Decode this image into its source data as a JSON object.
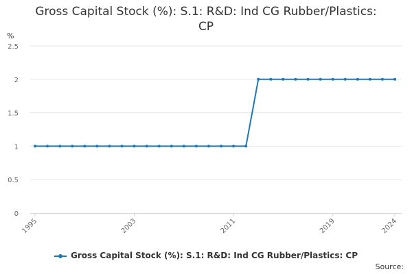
{
  "title_lines": [
    "Gross Capital Stock (%): S.1: R&D: Ind CG Rubber/Plastics:",
    "CP"
  ],
  "y_unit": "%",
  "source_label": "Source:",
  "colors": {
    "series": "#1f77b4",
    "grid": "#e6e6e6",
    "axis": "#ccd6eb"
  },
  "chart_data": {
    "type": "line",
    "title": "Gross Capital Stock (%): S.1: R&D: Ind CG Rubber/Plastics: CP",
    "xlabel": "",
    "ylabel": "%",
    "ylim": [
      0,
      2.5
    ],
    "yticks": [
      0,
      0.5,
      1,
      1.5,
      2,
      2.5
    ],
    "xlim": [
      1995,
      2024
    ],
    "xticks": [
      1995,
      2003,
      2011,
      2019,
      2024
    ],
    "grid": true,
    "legend": "bottom",
    "series": [
      {
        "name": "Gross Capital Stock (%): S.1: R&D: Ind CG Rubber/Plastics: CP",
        "x": [
          1995,
          1996,
          1997,
          1998,
          1999,
          2000,
          2001,
          2002,
          2003,
          2004,
          2005,
          2006,
          2007,
          2008,
          2009,
          2010,
          2011,
          2012,
          2013,
          2014,
          2015,
          2016,
          2017,
          2018,
          2019,
          2020,
          2021,
          2022,
          2023,
          2024
        ],
        "values": [
          1,
          1,
          1,
          1,
          1,
          1,
          1,
          1,
          1,
          1,
          1,
          1,
          1,
          1,
          1,
          1,
          1,
          1,
          2,
          2,
          2,
          2,
          2,
          2,
          2,
          2,
          2,
          2,
          2,
          2
        ]
      }
    ]
  }
}
